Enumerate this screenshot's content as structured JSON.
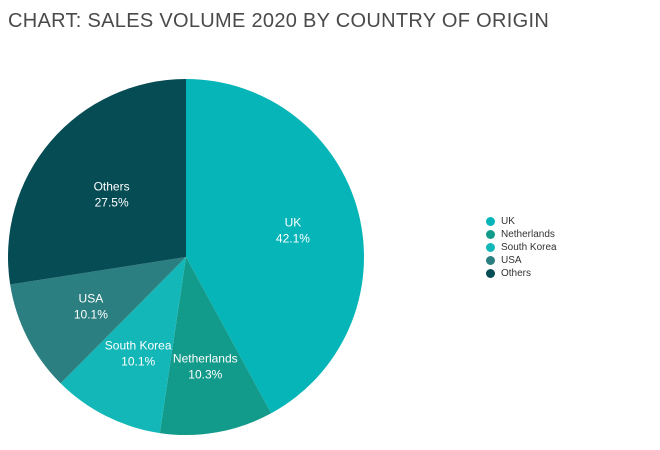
{
  "chart_data": {
    "type": "pie",
    "title": "CHART: SALES VOLUME 2020 BY COUNTRY OF ORIGIN",
    "legend_position": "right",
    "slices": [
      {
        "label": "UK",
        "value": 42.1,
        "value_label": "42.1%",
        "color": "#06b5b8"
      },
      {
        "label": "Netherlands",
        "value": 10.3,
        "value_label": "10.3%",
        "color": "#129a8a"
      },
      {
        "label": "South Korea",
        "value": 10.1,
        "value_label": "10.1%",
        "color": "#13b7b7"
      },
      {
        "label": "USA",
        "value": 10.1,
        "value_label": "10.1%",
        "color": "#2c7f80"
      },
      {
        "label": "Others",
        "value": 27.5,
        "value_label": "27.5%",
        "color": "#064c54"
      }
    ],
    "legend": [
      "UK",
      "Netherlands",
      "South Korea",
      "USA",
      "Others"
    ]
  }
}
